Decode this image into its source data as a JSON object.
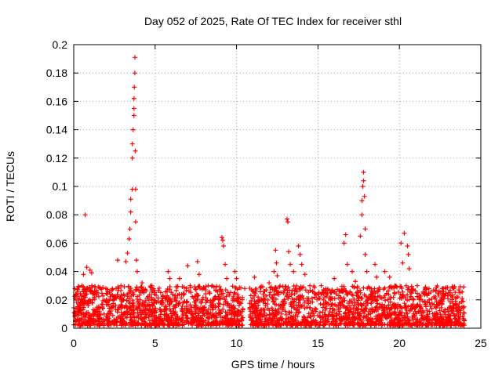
{
  "chart_data": {
    "type": "scatter",
    "title": "Day 052 of 2025, Rate Of TEC Index for receiver sthl",
    "xlabel": "GPS time / hours",
    "ylabel": "ROTI / TECUs",
    "xlim": [
      0,
      25
    ],
    "ylim": [
      0,
      0.2
    ],
    "x_ticks": [
      "0",
      "5",
      "10",
      "15",
      "20",
      "25"
    ],
    "y_ticks": [
      "0",
      "0.02",
      "0.04",
      "0.06",
      "0.08",
      "0.1",
      "0.12",
      "0.14",
      "0.16",
      "0.18",
      "0.2"
    ],
    "grid": true,
    "marker": "plus",
    "color": "#ff0000",
    "series": [
      {
        "name": "ROTI",
        "points": [
          [
            0.1,
            0.021
          ],
          [
            0.3,
            0.015
          ],
          [
            0.5,
            0.03
          ],
          [
            0.6,
            0.038
          ],
          [
            0.8,
            0.043
          ],
          [
            0.7,
            0.08
          ],
          [
            1.0,
            0.041
          ],
          [
            1.1,
            0.039
          ],
          [
            1.4,
            0.025
          ],
          [
            2.0,
            0.02
          ],
          [
            2.6,
            0.028
          ],
          [
            2.7,
            0.048
          ],
          [
            2.9,
            0.03
          ],
          [
            3.2,
            0.047
          ],
          [
            3.3,
            0.053
          ],
          [
            3.4,
            0.063
          ],
          [
            3.45,
            0.07
          ],
          [
            3.5,
            0.082
          ],
          [
            3.5,
            0.091
          ],
          [
            3.6,
            0.098
          ],
          [
            3.6,
            0.12
          ],
          [
            3.6,
            0.13
          ],
          [
            3.65,
            0.14
          ],
          [
            3.7,
            0.15
          ],
          [
            3.7,
            0.155
          ],
          [
            3.7,
            0.162
          ],
          [
            3.72,
            0.17
          ],
          [
            3.75,
            0.18
          ],
          [
            3.76,
            0.191
          ],
          [
            3.78,
            0.125
          ],
          [
            3.8,
            0.098
          ],
          [
            3.8,
            0.075
          ],
          [
            3.85,
            0.048
          ],
          [
            3.9,
            0.04
          ],
          [
            4.2,
            0.032
          ],
          [
            4.8,
            0.03
          ],
          [
            5.8,
            0.04
          ],
          [
            5.9,
            0.035
          ],
          [
            6.5,
            0.035
          ],
          [
            7.0,
            0.044
          ],
          [
            7.6,
            0.047
          ],
          [
            7.7,
            0.038
          ],
          [
            8.5,
            0.03
          ],
          [
            9.1,
            0.064
          ],
          [
            9.15,
            0.062
          ],
          [
            9.2,
            0.058
          ],
          [
            9.3,
            0.045
          ],
          [
            9.4,
            0.035
          ],
          [
            9.9,
            0.04
          ],
          [
            10.0,
            0.035
          ],
          [
            10.5,
            0.028
          ],
          [
            11.1,
            0.036
          ],
          [
            12.0,
            0.032
          ],
          [
            12.3,
            0.04
          ],
          [
            12.4,
            0.055
          ],
          [
            12.45,
            0.046
          ],
          [
            12.5,
            0.037
          ],
          [
            13.1,
            0.077
          ],
          [
            13.15,
            0.075
          ],
          [
            13.2,
            0.054
          ],
          [
            13.3,
            0.045
          ],
          [
            13.5,
            0.04
          ],
          [
            13.8,
            0.058
          ],
          [
            13.9,
            0.052
          ],
          [
            14.0,
            0.045
          ],
          [
            14.2,
            0.038
          ],
          [
            14.5,
            0.03
          ],
          [
            15.2,
            0.03
          ],
          [
            16.0,
            0.035
          ],
          [
            16.6,
            0.06
          ],
          [
            16.7,
            0.066
          ],
          [
            16.8,
            0.045
          ],
          [
            17.1,
            0.04
          ],
          [
            17.3,
            0.033
          ],
          [
            17.6,
            0.065
          ],
          [
            17.7,
            0.08
          ],
          [
            17.7,
            0.09
          ],
          [
            17.75,
            0.1
          ],
          [
            17.8,
            0.104
          ],
          [
            17.8,
            0.11
          ],
          [
            17.85,
            0.093
          ],
          [
            17.9,
            0.07
          ],
          [
            17.9,
            0.052
          ],
          [
            18.0,
            0.04
          ],
          [
            18.5,
            0.045
          ],
          [
            18.6,
            0.036
          ],
          [
            19.1,
            0.04
          ],
          [
            19.4,
            0.036
          ],
          [
            19.7,
            0.025
          ],
          [
            20.1,
            0.06
          ],
          [
            20.2,
            0.046
          ],
          [
            20.3,
            0.067
          ],
          [
            20.5,
            0.058
          ],
          [
            20.55,
            0.052
          ],
          [
            20.6,
            0.042
          ],
          [
            21.1,
            0.03
          ],
          [
            21.6,
            0.028
          ],
          [
            22.1,
            0.027
          ],
          [
            22.6,
            0.022
          ],
          [
            23.1,
            0.025
          ],
          [
            23.6,
            0.022
          ],
          [
            23.9,
            0.019
          ]
        ]
      }
    ],
    "dense_band": {
      "description": "Dense background of ROTI samples across the day, mostly between 0.002 and 0.03 TECU/s, with a data gap near 10.4-10.8 h",
      "x_range": [
        0,
        24
      ],
      "y_range": [
        0.002,
        0.03
      ],
      "gaps": [
        [
          10.4,
          10.8
        ]
      ]
    }
  }
}
